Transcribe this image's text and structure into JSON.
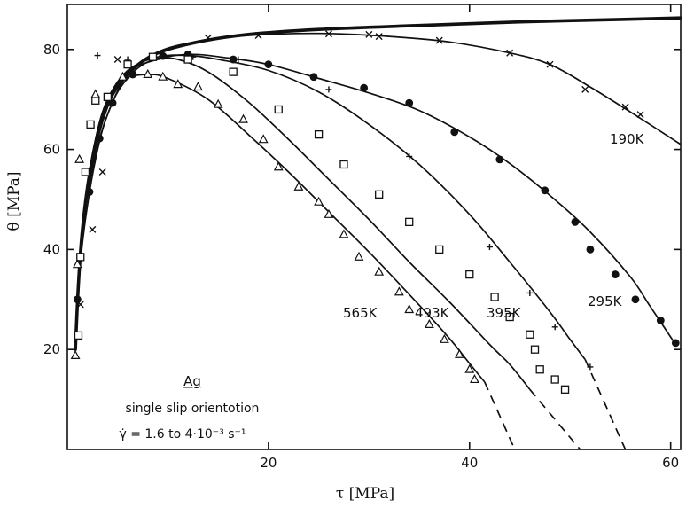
{
  "chart_data": {
    "type": "line",
    "xlabel": "τ [MPa]",
    "ylabel": "θ [MPa]",
    "xlim": [
      0,
      61
    ],
    "ylim": [
      0,
      89
    ],
    "xticks": [
      20,
      40,
      60
    ],
    "yticks": [
      20,
      40,
      60,
      80
    ],
    "grid": false,
    "annotation": {
      "title": "Ag",
      "line1": "single slip orientotion",
      "line2": "γ̇ = 1.6 to 4·10⁻³ s⁻¹"
    },
    "series": [
      {
        "name": "190K",
        "marker": "cross",
        "curve": [
          [
            0.8,
            20
          ],
          [
            1.2,
            35
          ],
          [
            1.8,
            46
          ],
          [
            2.8,
            58
          ],
          [
            4,
            67
          ],
          [
            6,
            75
          ],
          [
            9,
            79.5
          ],
          [
            13,
            81.6
          ],
          [
            18,
            82.8
          ],
          [
            25,
            83.2
          ],
          [
            32,
            82.6
          ],
          [
            38,
            81.5
          ],
          [
            44,
            79.3
          ],
          [
            48,
            77
          ],
          [
            52,
            72.5
          ],
          [
            56,
            67.5
          ],
          [
            61,
            61
          ]
        ],
        "points": [
          [
            1.3,
            29
          ],
          [
            2.5,
            44
          ],
          [
            3.5,
            55.5
          ],
          [
            5,
            78
          ],
          [
            14,
            82.3
          ],
          [
            19,
            82.8
          ],
          [
            26,
            83.1
          ],
          [
            30,
            83
          ],
          [
            31,
            82.6
          ],
          [
            37,
            81.8
          ],
          [
            44,
            79.3
          ],
          [
            48,
            77
          ],
          [
            51.5,
            72
          ],
          [
            55.5,
            68.5
          ],
          [
            57,
            67
          ]
        ]
      },
      {
        "name": "295K",
        "marker": "filled-circle",
        "curve": [
          [
            0.8,
            20
          ],
          [
            1.2,
            36
          ],
          [
            1.8,
            48
          ],
          [
            2.8,
            59
          ],
          [
            4,
            67
          ],
          [
            5.5,
            73
          ],
          [
            8,
            77.5
          ],
          [
            12,
            79
          ],
          [
            16,
            78.3
          ],
          [
            20,
            77
          ],
          [
            25,
            74.2
          ],
          [
            30,
            71.3
          ],
          [
            35,
            67.8
          ],
          [
            40,
            62.5
          ],
          [
            44,
            57.2
          ],
          [
            48,
            50.8
          ],
          [
            52,
            43.5
          ],
          [
            56,
            34.5
          ],
          [
            58,
            28.5
          ],
          [
            60.5,
            21
          ]
        ],
        "points": [
          [
            1,
            30
          ],
          [
            2.2,
            51.5
          ],
          [
            3.2,
            62.2
          ],
          [
            4.5,
            69.3
          ],
          [
            6.5,
            75
          ],
          [
            9.5,
            78.7
          ],
          [
            12,
            79
          ],
          [
            16.5,
            78
          ],
          [
            20,
            77
          ],
          [
            24.5,
            74.5
          ],
          [
            29.5,
            72.3
          ],
          [
            34,
            69.3
          ],
          [
            38.5,
            63.5
          ],
          [
            43,
            58
          ],
          [
            47.5,
            51.8
          ],
          [
            50.5,
            45.5
          ],
          [
            52,
            40
          ],
          [
            54.5,
            35
          ],
          [
            56.5,
            30
          ],
          [
            59,
            25.8
          ],
          [
            60.5,
            21.3
          ]
        ]
      },
      {
        "name": "395K",
        "marker": "plus",
        "curve": [
          [
            0.8,
            20
          ],
          [
            1.2,
            37
          ],
          [
            1.8,
            50
          ],
          [
            2.8,
            62
          ],
          [
            4,
            70
          ],
          [
            6,
            75.8
          ],
          [
            9,
            78.5
          ],
          [
            12,
            78.8
          ],
          [
            15,
            78
          ],
          [
            20,
            75.8
          ],
          [
            25,
            71.5
          ],
          [
            30,
            65
          ],
          [
            35,
            57
          ],
          [
            40,
            47
          ],
          [
            44,
            37.5
          ],
          [
            48,
            27.5
          ],
          [
            50,
            22
          ],
          [
            51.5,
            18
          ]
        ],
        "dashed": [
          [
            51.5,
            18
          ],
          [
            55.5,
            0
          ]
        ],
        "points": [
          [
            3,
            78.8
          ],
          [
            6,
            78
          ],
          [
            9.5,
            78.8
          ],
          [
            12.5,
            78.5
          ],
          [
            17,
            78
          ],
          [
            26,
            72
          ],
          [
            34,
            58.6
          ],
          [
            42,
            40.5
          ],
          [
            46,
            31.3
          ],
          [
            48.5,
            24.5
          ],
          [
            52,
            16.5
          ]
        ]
      },
      {
        "name": "493K",
        "marker": "open-square",
        "curve": [
          [
            0.8,
            20
          ],
          [
            1.2,
            37
          ],
          [
            1.8,
            50
          ],
          [
            2.8,
            62
          ],
          [
            4,
            70
          ],
          [
            6,
            75.5
          ],
          [
            9,
            78
          ],
          [
            11,
            78
          ],
          [
            14,
            75.5
          ],
          [
            18,
            69.5
          ],
          [
            22,
            62
          ],
          [
            26,
            54
          ],
          [
            30,
            46
          ],
          [
            34,
            37.5
          ],
          [
            38,
            29.5
          ],
          [
            42,
            21
          ],
          [
            44,
            17
          ],
          [
            46,
            12
          ]
        ],
        "dashed": [
          [
            46,
            12
          ],
          [
            51,
            0
          ]
        ],
        "points": [
          [
            1.1,
            22.8
          ],
          [
            1.3,
            38.5
          ],
          [
            1.8,
            55.5
          ],
          [
            2.3,
            65
          ],
          [
            2.8,
            69.8
          ],
          [
            4,
            70.5
          ],
          [
            6,
            77
          ],
          [
            8.5,
            78.5
          ],
          [
            12,
            78
          ],
          [
            16.5,
            75.5
          ],
          [
            21,
            68
          ],
          [
            25,
            63
          ],
          [
            27.5,
            57
          ],
          [
            31,
            51
          ],
          [
            34,
            45.5
          ],
          [
            37,
            40
          ],
          [
            40,
            35
          ],
          [
            42.5,
            30.5
          ],
          [
            44,
            26.5
          ],
          [
            46,
            23
          ],
          [
            46.5,
            20
          ],
          [
            47,
            16
          ],
          [
            48.5,
            14
          ],
          [
            49.5,
            12
          ]
        ]
      },
      {
        "name": "565K",
        "marker": "open-triangle",
        "curve": [
          [
            0.8,
            20
          ],
          [
            1.2,
            36
          ],
          [
            1.8,
            50
          ],
          [
            2.8,
            62
          ],
          [
            4,
            70
          ],
          [
            5.5,
            74
          ],
          [
            8,
            75
          ],
          [
            10,
            74.2
          ],
          [
            14,
            70
          ],
          [
            18,
            63
          ],
          [
            22,
            55.5
          ],
          [
            26,
            47.5
          ],
          [
            30,
            39.5
          ],
          [
            34,
            31
          ],
          [
            37,
            24.5
          ],
          [
            38.5,
            21
          ],
          [
            40,
            17.2
          ],
          [
            41.5,
            13.5
          ]
        ],
        "dashed": [
          [
            41.5,
            13.5
          ],
          [
            44.5,
            0
          ]
        ],
        "points": [
          [
            0.8,
            18.8
          ],
          [
            1,
            37
          ],
          [
            1.2,
            58
          ],
          [
            2.8,
            71
          ],
          [
            5.5,
            74.5
          ],
          [
            8,
            75
          ],
          [
            9.5,
            74.5
          ],
          [
            11,
            73
          ],
          [
            13,
            72.5
          ],
          [
            15,
            69
          ],
          [
            17.5,
            66
          ],
          [
            19.5,
            62
          ],
          [
            21,
            56.5
          ],
          [
            23,
            52.5
          ],
          [
            25,
            49.5
          ],
          [
            26,
            47
          ],
          [
            27.5,
            43
          ],
          [
            29,
            38.5
          ],
          [
            31,
            35.5
          ],
          [
            33,
            31.5
          ],
          [
            34,
            28
          ],
          [
            36,
            25
          ],
          [
            37.5,
            22
          ],
          [
            39,
            19
          ],
          [
            40,
            16
          ],
          [
            40.5,
            14
          ]
        ]
      }
    ],
    "labels": {
      "k190": "190K",
      "k295": "295K",
      "k395": "395K",
      "k493": "493K",
      "k565": "565K"
    }
  }
}
